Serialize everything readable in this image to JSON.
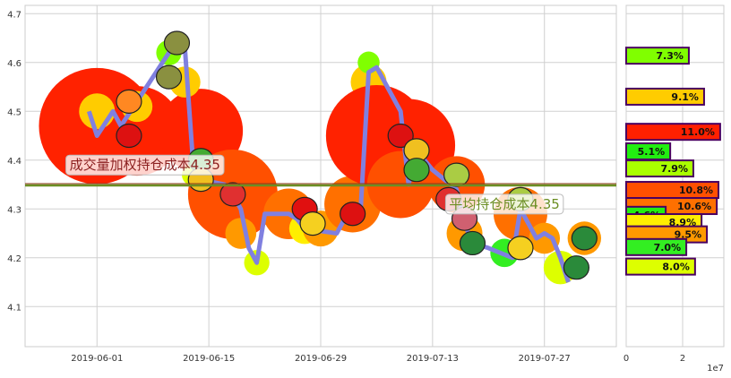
{
  "chart_data": [
    {
      "type": "line",
      "title": "",
      "xlabel": "",
      "ylabel": "",
      "ylim": [
        4.018,
        4.717
      ],
      "xlim": [
        "2019-05-23",
        "2019-08-05"
      ],
      "grid": true,
      "x_ticks": [
        "2019-06-01",
        "2019-06-15",
        "2019-06-29",
        "2019-07-13",
        "2019-07-27"
      ],
      "y_ticks": [
        "4.1",
        "4.2",
        "4.3",
        "4.4",
        "4.5",
        "4.6",
        "4.7"
      ],
      "line_color": "#8080e0",
      "series": [
        {
          "name": "price",
          "points": [
            [
              "2019-05-31",
              4.5
            ],
            [
              "2019-06-01",
              4.45
            ],
            [
              "2019-06-03",
              4.5
            ],
            [
              "2019-06-04",
              4.47
            ],
            [
              "2019-06-06",
              4.52
            ],
            [
              "2019-06-10",
              4.62
            ],
            [
              "2019-06-11",
              4.64
            ],
            [
              "2019-06-12",
              4.63
            ],
            [
              "2019-06-13",
              4.4
            ],
            [
              "2019-06-14",
              4.36
            ],
            [
              "2019-06-17",
              4.35
            ],
            [
              "2019-06-18",
              4.33
            ],
            [
              "2019-06-19",
              4.3
            ],
            [
              "2019-06-20",
              4.22
            ],
            [
              "2019-06-21",
              4.19
            ],
            [
              "2019-06-22",
              4.29
            ],
            [
              "2019-06-24",
              4.29
            ],
            [
              "2019-06-25",
              4.29
            ],
            [
              "2019-06-26",
              4.28
            ],
            [
              "2019-06-27",
              4.26
            ],
            [
              "2019-07-01",
              4.25
            ],
            [
              "2019-07-02",
              4.28
            ],
            [
              "2019-07-04",
              4.3
            ],
            [
              "2019-07-05",
              4.58
            ],
            [
              "2019-07-06",
              4.59
            ],
            [
              "2019-07-09",
              4.5
            ],
            [
              "2019-07-10",
              4.35
            ],
            [
              "2019-07-11",
              4.42
            ],
            [
              "2019-07-12",
              4.4
            ],
            [
              "2019-07-13",
              4.38
            ],
            [
              "2019-07-16",
              4.34
            ],
            [
              "2019-07-17",
              4.27
            ],
            [
              "2019-07-18",
              4.23
            ],
            [
              "2019-07-20",
              4.22
            ],
            [
              "2019-07-23",
              4.2
            ],
            [
              "2019-07-24",
              4.3
            ],
            [
              "2019-07-26",
              4.24
            ],
            [
              "2019-07-27",
              4.25
            ],
            [
              "2019-07-28",
              4.24
            ],
            [
              "2019-07-29",
              4.2
            ],
            [
              "2019-07-30",
              4.15
            ]
          ]
        }
      ],
      "bubbles": [
        {
          "date": "2019-06-01",
          "price": 4.47,
          "volume": 42,
          "color": "#ff2200"
        },
        {
          "date": "2019-06-06",
          "price": 4.46,
          "volume": 25,
          "color": "#ff2200"
        },
        {
          "date": "2019-06-14",
          "price": 4.46,
          "volume": 22,
          "color": "#ff2200"
        },
        {
          "date": "2019-06-01",
          "price": 4.5,
          "volume": 4,
          "color": "#ffcc00"
        },
        {
          "date": "2019-06-06",
          "price": 4.51,
          "volume": 3,
          "color": "#ffcc00"
        },
        {
          "date": "2019-06-10",
          "price": 4.62,
          "volume": 2,
          "color": "#80ff00"
        },
        {
          "date": "2019-06-12",
          "price": 4.56,
          "volume": 3,
          "color": "#ffcc00"
        },
        {
          "date": "2019-06-13",
          "price": 4.37,
          "volume": 1.5,
          "color": "#ddff00"
        },
        {
          "date": "2019-06-18",
          "price": 4.33,
          "volume": 25,
          "color": "#ff5000"
        },
        {
          "date": "2019-06-19",
          "price": 4.25,
          "volume": 3,
          "color": "#ff9900"
        },
        {
          "date": "2019-06-21",
          "price": 4.19,
          "volume": 2,
          "color": "#ddff00"
        },
        {
          "date": "2019-06-25",
          "price": 4.29,
          "volume": 8,
          "color": "#ff7000"
        },
        {
          "date": "2019-06-27",
          "price": 4.26,
          "volume": 3,
          "color": "#ffee00"
        },
        {
          "date": "2019-06-29",
          "price": 4.26,
          "volume": 4,
          "color": "#ff9900"
        },
        {
          "date": "2019-07-03",
          "price": 4.31,
          "volume": 10,
          "color": "#ff7000"
        },
        {
          "date": "2019-07-05",
          "price": 4.56,
          "volume": 4,
          "color": "#ffcc00"
        },
        {
          "date": "2019-07-05",
          "price": 4.6,
          "volume": 1.5,
          "color": "#80ff00"
        },
        {
          "date": "2019-07-06",
          "price": 4.45,
          "volume": 32,
          "color": "#ff2200"
        },
        {
          "date": "2019-07-10",
          "price": 4.43,
          "volume": 27,
          "color": "#ff2200"
        },
        {
          "date": "2019-07-09",
          "price": 4.35,
          "volume": 14,
          "color": "#ff5000"
        },
        {
          "date": "2019-07-16",
          "price": 4.35,
          "volume": 10,
          "color": "#ff5000"
        },
        {
          "date": "2019-07-17",
          "price": 4.25,
          "volume": 4,
          "color": "#ff9900"
        },
        {
          "date": "2019-07-24",
          "price": 4.29,
          "volume": 9,
          "color": "#ff7000"
        },
        {
          "date": "2019-07-22",
          "price": 4.21,
          "volume": 2.5,
          "color": "#33ee22"
        },
        {
          "date": "2019-07-27",
          "price": 4.24,
          "volume": 3,
          "color": "#ff9900"
        },
        {
          "date": "2019-07-29",
          "price": 4.18,
          "volume": 3.5,
          "color": "#ddff00"
        },
        {
          "date": "2019-08-01",
          "price": 4.24,
          "volume": 3.5,
          "color": "#ff9900"
        },
        {
          "date": "2019-07-16",
          "price": 4.37,
          "volume": 1,
          "color": "#80ff00"
        }
      ],
      "fruits": [
        {
          "name": "apple",
          "date": "2019-06-05",
          "price": 4.45,
          "color": "#dd1111"
        },
        {
          "name": "carrot",
          "date": "2019-06-05",
          "price": 4.52,
          "color": "#ff8822"
        },
        {
          "name": "pear",
          "date": "2019-06-11",
          "price": 4.64,
          "color": "#8a9040"
        },
        {
          "name": "pear",
          "date": "2019-06-10",
          "price": 4.57,
          "color": "#8a9040"
        },
        {
          "name": "peapod",
          "date": "2019-06-14",
          "price": 4.4,
          "color": "#44aa33"
        },
        {
          "name": "corn",
          "date": "2019-06-14",
          "price": 4.36,
          "color": "#f0c020"
        },
        {
          "name": "watermelon-slice",
          "date": "2019-06-18",
          "price": 4.33,
          "color": "#e03030"
        },
        {
          "name": "strawberry",
          "date": "2019-06-27",
          "price": 4.3,
          "color": "#e01010"
        },
        {
          "name": "banana",
          "date": "2019-06-28",
          "price": 4.27,
          "color": "#f5d020"
        },
        {
          "name": "apple",
          "date": "2019-07-03",
          "price": 4.29,
          "color": "#dd1111"
        },
        {
          "name": "apple",
          "date": "2019-07-09",
          "price": 4.45,
          "color": "#dd1111"
        },
        {
          "name": "corn",
          "date": "2019-07-11",
          "price": 4.42,
          "color": "#f0c020"
        },
        {
          "name": "peapod",
          "date": "2019-07-11",
          "price": 4.38,
          "color": "#44aa33"
        },
        {
          "name": "kiwi",
          "date": "2019-07-16",
          "price": 4.37,
          "color": "#aacc44"
        },
        {
          "name": "watermelon-slice",
          "date": "2019-07-15",
          "price": 4.32,
          "color": "#e03030"
        },
        {
          "name": "pineapple",
          "date": "2019-07-17",
          "price": 4.28,
          "color": "#d06070"
        },
        {
          "name": "watermelon",
          "date": "2019-07-18",
          "price": 4.23,
          "color": "#2a8a3a"
        },
        {
          "name": "banana",
          "date": "2019-07-24",
          "price": 4.22,
          "color": "#f5d020"
        },
        {
          "name": "kiwi",
          "date": "2019-07-24",
          "price": 4.32,
          "color": "#aacc44"
        },
        {
          "name": "watermelon",
          "date": "2019-08-01",
          "price": 4.24,
          "color": "#2a8a3a"
        },
        {
          "name": "watermelon",
          "date": "2019-07-31",
          "price": 4.18,
          "color": "#2a8a3a"
        }
      ],
      "hline": {
        "value": 4.35,
        "color": "#6b8e23"
      },
      "annotations": [
        {
          "text": "成交量加权持仓成本4.35",
          "date": "2019-06-07",
          "price": 4.39,
          "color": "#8b2020"
        },
        {
          "text": "平均持仓成本4.35",
          "date": "2019-07-22",
          "price": 4.31,
          "color": "#6b8e23"
        }
      ]
    },
    {
      "type": "bar",
      "orientation": "horizontal",
      "xlim": [
        0,
        34600000.0
      ],
      "ylim": [
        4.018,
        4.717
      ],
      "x_ticks": [
        "0",
        "2"
      ],
      "x_offset_label": "1e7",
      "border_color": "#4a0060",
      "bars": [
        {
          "price": 4.614,
          "value": 22200000.0,
          "label": "7.3%",
          "color": "#80ff00"
        },
        {
          "price": 4.53,
          "value": 27600000.0,
          "label": "9.1%",
          "color": "#ffcc00"
        },
        {
          "price": 4.458,
          "value": 33300000.0,
          "label": "11.0%",
          "color": "#ff2000"
        },
        {
          "price": 4.418,
          "value": 15600000.0,
          "label": "5.1%",
          "color": "#22ee11"
        },
        {
          "price": 4.383,
          "value": 23800000.0,
          "label": "7.9%",
          "color": "#aaff00"
        },
        {
          "price": 4.339,
          "value": 32700000.0,
          "label": "10.8%",
          "color": "#ff5000"
        },
        {
          "price": 4.306,
          "value": 32100000.0,
          "label": "10.6%",
          "color": "#ff7000"
        },
        {
          "price": 4.288,
          "value": 14000000.0,
          "label": "4.6%",
          "color": "#22ee11"
        },
        {
          "price": 4.273,
          "value": 26700000.0,
          "label": "8.9%",
          "color": "#ffee00"
        },
        {
          "price": 4.248,
          "value": 28600000.0,
          "label": "9.5%",
          "color": "#ff9900"
        },
        {
          "price": 4.222,
          "value": 21300000.0,
          "label": "7.0%",
          "color": "#33ee22"
        },
        {
          "price": 4.182,
          "value": 24400000.0,
          "label": "8.0%",
          "color": "#ddff00"
        }
      ]
    }
  ]
}
